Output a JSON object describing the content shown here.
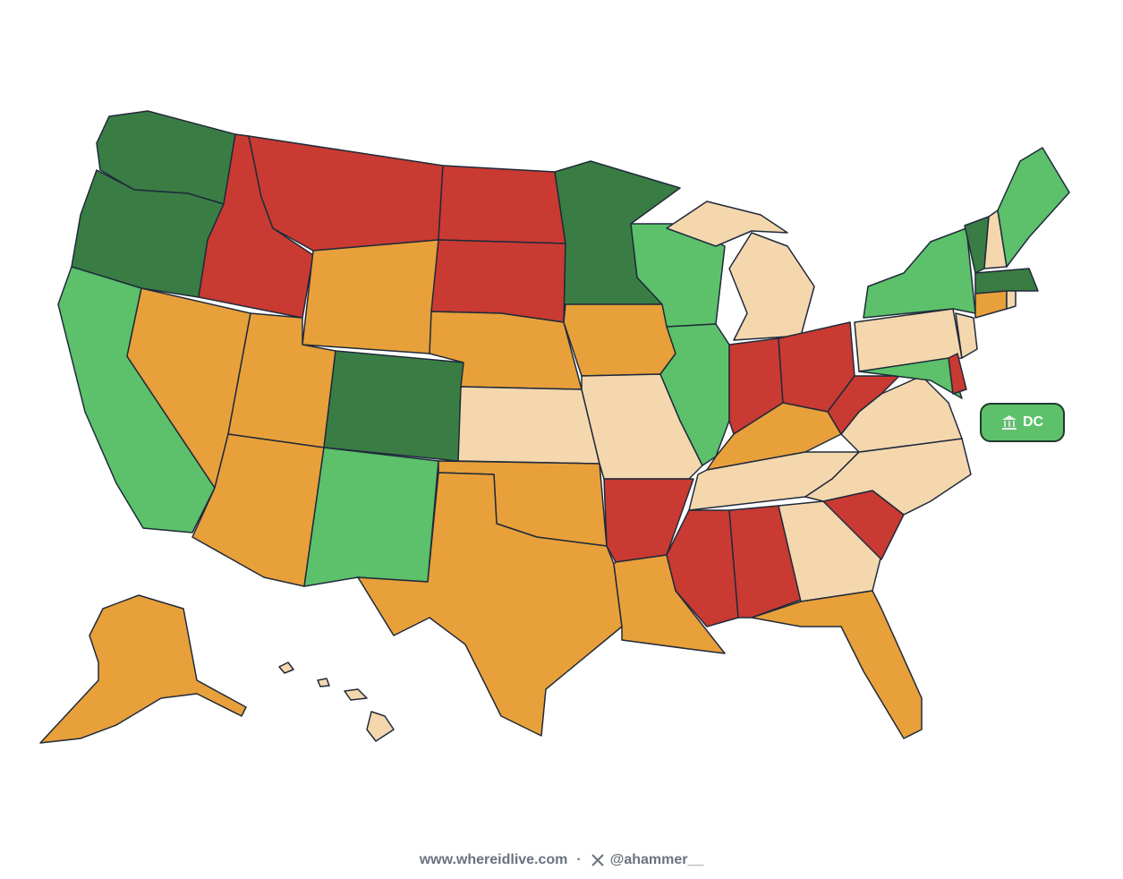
{
  "dc_badge": {
    "label": "DC"
  },
  "footer": {
    "site": "www.whereidlive.com",
    "separator": "·",
    "handle": "@ahammer__"
  }
}
